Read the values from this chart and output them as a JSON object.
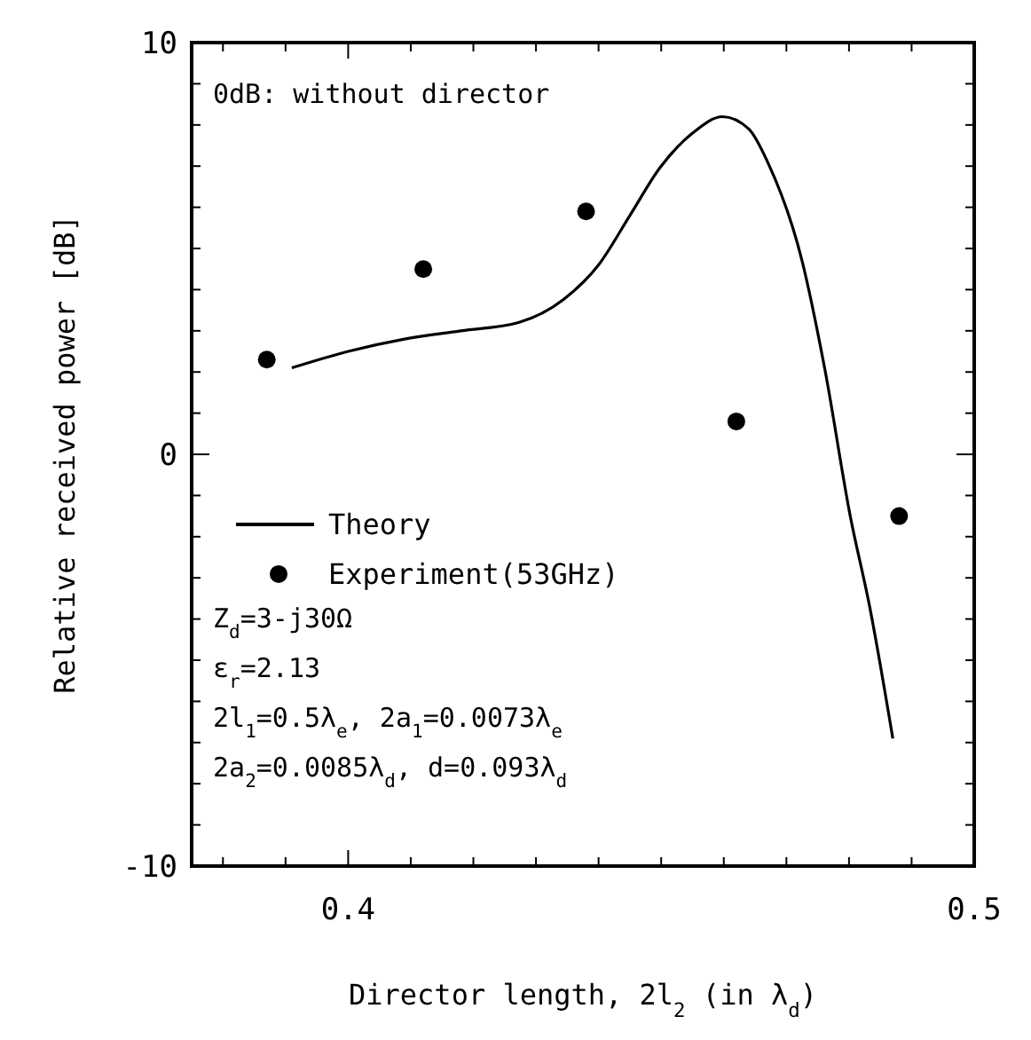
{
  "chart_data": {
    "type": "line",
    "xlabel": "Director length, 2l$_{2}$ (in λ$_{d}$)",
    "ylabel": "Relative received power [dB]",
    "xlim": [
      0.375,
      0.5
    ],
    "xticks": [
      {
        "value": 0.38,
        "label": null
      },
      {
        "value": 0.39,
        "label": null
      },
      {
        "value": 0.4,
        "label": "0.4"
      },
      {
        "value": 0.41,
        "label": null
      },
      {
        "value": 0.42,
        "label": null
      },
      {
        "value": 0.43,
        "label": null
      },
      {
        "value": 0.44,
        "label": null
      },
      {
        "value": 0.45,
        "label": null
      },
      {
        "value": 0.46,
        "label": null
      },
      {
        "value": 0.47,
        "label": null
      },
      {
        "value": 0.48,
        "label": null
      },
      {
        "value": 0.49,
        "label": null
      },
      {
        "value": 0.5,
        "label": "0.5"
      }
    ],
    "ylim": [
      -10,
      10
    ],
    "yticks": [
      -10,
      {
        "value": -9,
        "label": null
      },
      {
        "value": -8,
        "label": null
      },
      {
        "value": -7,
        "label": null
      },
      {
        "value": -6,
        "label": null
      },
      {
        "value": -5,
        "label": null
      },
      {
        "value": -4,
        "label": null
      },
      {
        "value": -3,
        "label": null
      },
      {
        "value": -2,
        "label": null
      },
      {
        "value": -1,
        "label": null
      },
      0,
      {
        "value": 1,
        "label": null
      },
      {
        "value": 2,
        "label": null
      },
      {
        "value": 3,
        "label": null
      },
      {
        "value": 4,
        "label": null
      },
      {
        "value": 5,
        "label": null
      },
      {
        "value": 6,
        "label": null
      },
      {
        "value": 7,
        "label": null
      },
      {
        "value": 8,
        "label": null
      },
      {
        "value": 9,
        "label": null
      },
      10
    ],
    "grid": false,
    "legend": "left",
    "series": [
      {
        "name": "Theory",
        "color": "#000000",
        "marker": "none",
        "line_style": "solid",
        "x": [
          0.391,
          0.4,
          0.409,
          0.418,
          0.4272,
          0.4344,
          0.44,
          0.445,
          0.4498,
          0.455,
          0.4598,
          0.464,
          0.467,
          0.4725,
          0.4761,
          0.4802,
          0.4833,
          0.487
        ],
        "values": [
          2.1,
          2.5,
          2.8,
          3.0,
          3.2,
          3.76,
          4.6,
          5.8,
          6.96,
          7.8,
          8.2,
          7.9,
          7.1,
          4.7,
          2.1,
          -1.5,
          -3.7,
          -6.9
        ]
      },
      {
        "name": "Experiment(53GHz)",
        "type": "scatter",
        "color": "#000000",
        "marker": "circle",
        "x": [
          0.387,
          0.412,
          0.438,
          0.462,
          0.488
        ],
        "values": [
          2.3,
          4.5,
          5.9,
          0.8,
          -1.5
        ]
      }
    ],
    "annotations": [
      "0dB: without director",
      "Z$_{d}$=3-j30Ω",
      "ε$_{r}$=2.13",
      "2l$_{1}$=0.5λ$_{e}$, 2a$_{1}$=0.0073λ$_{e}$",
      "2a$_{2}$=0.0085λ$_{d}$, d=0.093λ$_{d}$"
    ]
  }
}
